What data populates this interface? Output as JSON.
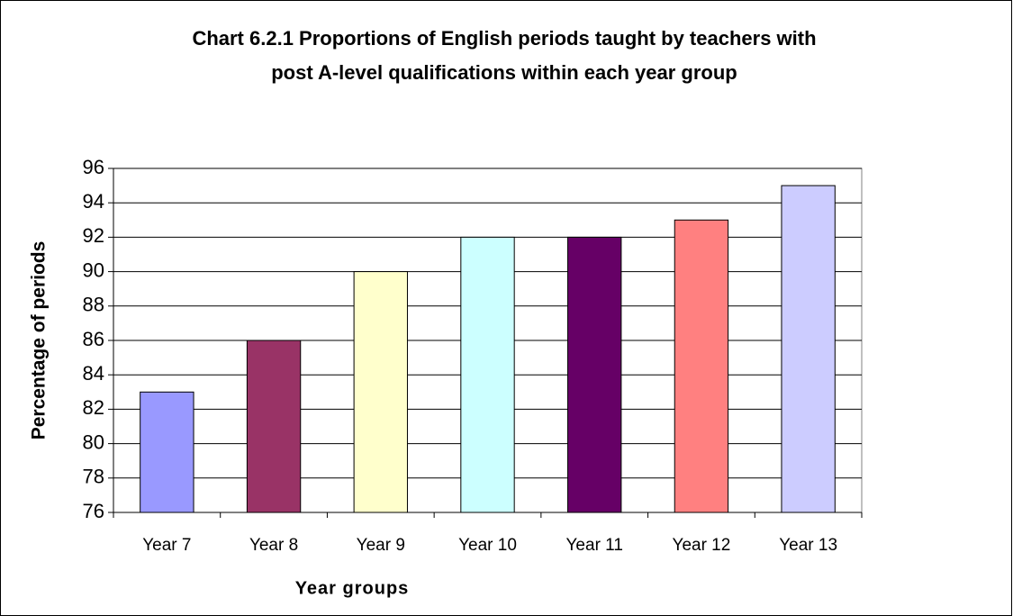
{
  "chart_data": {
    "type": "bar",
    "title": [
      "Chart 6.2.1 Proportions of English periods taught by teachers with",
      "post A-level qualifications within each year group"
    ],
    "x_label": "Year groups",
    "y_label": "Percentage of periods",
    "categories": [
      "Year 7",
      "Year 8",
      "Year 9",
      "Year 10",
      "Year 11",
      "Year 12",
      "Year 13"
    ],
    "values": [
      83,
      86,
      90,
      92,
      92,
      93,
      95
    ],
    "colors": [
      "#9999ff",
      "#993366",
      "#ffffcc",
      "#ccffff",
      "#660066",
      "#ff8080",
      "#ccccff"
    ],
    "ylim": [
      76,
      96
    ],
    "yticks": [
      76,
      78,
      80,
      82,
      84,
      86,
      88,
      90,
      92,
      94,
      96
    ],
    "grid": true
  }
}
